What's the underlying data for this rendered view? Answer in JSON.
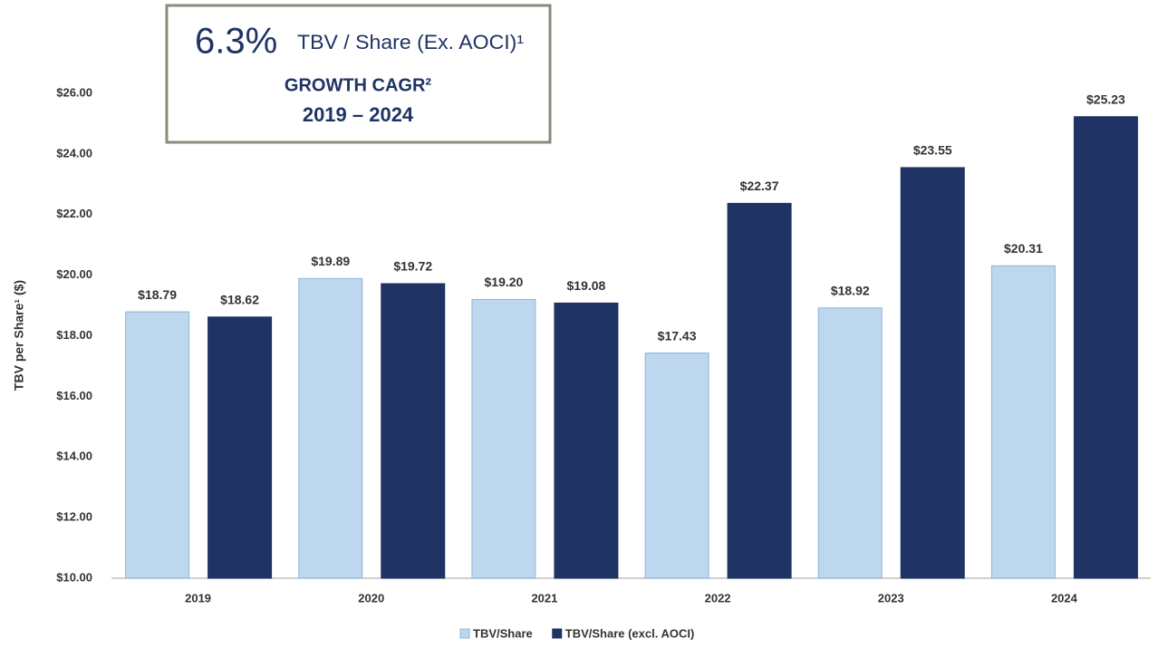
{
  "chart_data": {
    "type": "bar",
    "callout": {
      "headline": "6.3%",
      "metric": "TBV / Share (Ex. AOCI)¹",
      "subtitle": "GROWTH CAGR²",
      "period": "2019 – 2024"
    },
    "y_label": "TBV per Share¹ ($)",
    "categories": [
      "2019",
      "2020",
      "2021",
      "2022",
      "2023",
      "2024"
    ],
    "series": [
      {
        "name": "TBV/Share",
        "color": "#bdd7ee",
        "values": [
          18.79,
          19.89,
          19.2,
          17.43,
          18.92,
          20.31
        ],
        "value_labels": [
          "$18.79",
          "$19.89",
          "$19.20",
          "$17.43",
          "$18.92",
          "$20.31"
        ]
      },
      {
        "name": "TBV/Share (excl. AOCI)",
        "color": "#1f3364",
        "values": [
          18.62,
          19.72,
          19.08,
          22.37,
          23.55,
          25.23
        ],
        "value_labels": [
          "$18.62",
          "$19.72",
          "$19.08",
          "$22.37",
          "$23.55",
          "$25.23"
        ]
      }
    ],
    "ylim": [
      10,
      26
    ],
    "yticks": [
      {
        "value": 10,
        "label": "$10.00"
      },
      {
        "value": 12,
        "label": "$12.00"
      },
      {
        "value": 14,
        "label": "$14.00"
      },
      {
        "value": 16,
        "label": "$16.00"
      },
      {
        "value": 18,
        "label": "$18.00"
      },
      {
        "value": 20,
        "label": "$20.00"
      },
      {
        "value": 22,
        "label": "$22.00"
      },
      {
        "value": 24,
        "label": "$24.00"
      },
      {
        "value": 26,
        "label": "$26.00"
      }
    ],
    "grid": false,
    "legend": "bottom"
  }
}
